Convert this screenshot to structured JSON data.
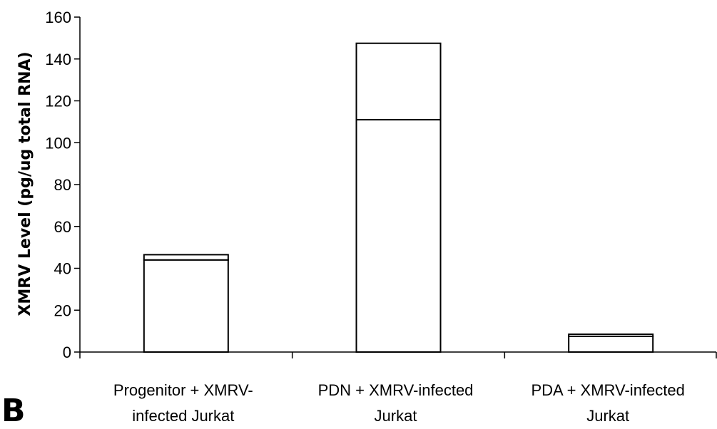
{
  "panel_label": "B",
  "chart_data": {
    "type": "bar",
    "stacked": true,
    "title": "",
    "xlabel": "",
    "ylabel": "XMRV Level (pg/ug total RNA)",
    "ylim": [
      0,
      160
    ],
    "yticks": [
      0,
      20,
      40,
      60,
      80,
      100,
      120,
      140,
      160
    ],
    "grid": false,
    "categories": [
      [
        "Progenitor + XMRV-",
        "infected Jurkat"
      ],
      [
        "PDN + XMRV-infected",
        "Jurkat"
      ],
      [
        "PDA + XMRV-infected",
        "Jurkat"
      ]
    ],
    "series": [
      {
        "values": [
          44,
          111,
          7.5
        ],
        "color": "#ffffff"
      },
      {
        "values": [
          2.5,
          36.5,
          1
        ],
        "color": "#ffffff"
      }
    ]
  }
}
